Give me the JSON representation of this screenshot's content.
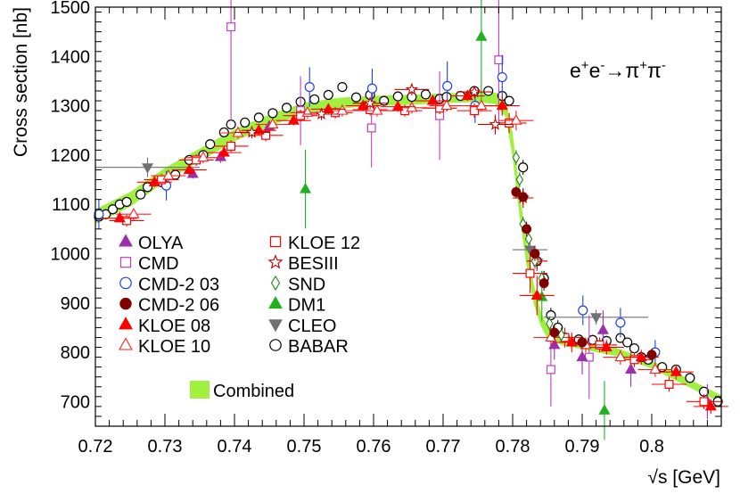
{
  "chart_data": {
    "type": "scatter",
    "title": "e+e-→π+π-",
    "title_parts": {
      "base": "e",
      "sup1": "+",
      "base2": "e",
      "sup2": "-",
      "arrow": "→π",
      "sup3": "+",
      "base3": "π",
      "sup4": "-"
    },
    "xlabel": "√s   [GeV]",
    "ylabel": "Cross section   [nb]",
    "xlim": [
      0.72,
      0.81
    ],
    "ylim": [
      650,
      1500
    ],
    "x_ticks": [
      0.72,
      0.73,
      0.74,
      0.75,
      0.76,
      0.77,
      0.78,
      0.79,
      0.8
    ],
    "x_tick_labels": [
      "0.72",
      "0.73",
      "0.74",
      "0.75",
      "0.76",
      "0.77",
      "0.78",
      "0.79",
      "0.8"
    ],
    "y_ticks": [
      700,
      800,
      900,
      1000,
      1100,
      1200,
      1300,
      1400,
      1500
    ],
    "y_tick_labels": [
      "700",
      "800",
      "900",
      "1000",
      "1100",
      "1200",
      "1300",
      "1400",
      "1500"
    ],
    "legend": [
      {
        "name": "OLYA",
        "marker": "triangle-up-filled",
        "color": "#9b2fae"
      },
      {
        "name": "CMD",
        "marker": "square-open",
        "color": "#c040c0"
      },
      {
        "name": "CMD-2 03",
        "marker": "circle-open",
        "color": "#2040e0"
      },
      {
        "name": "CMD-2 06",
        "marker": "circle-filled",
        "color": "#800000"
      },
      {
        "name": "KLOE 08",
        "marker": "triangle-up-filled",
        "color": "#ff0000"
      },
      {
        "name": "KLOE 10",
        "marker": "triangle-up-open",
        "color": "#ff2020"
      },
      {
        "name": "KLOE 12",
        "marker": "square-open",
        "color": "#ff0000"
      },
      {
        "name": "BESIII",
        "marker": "star-open",
        "color": "#c00000"
      },
      {
        "name": "SND",
        "marker": "diamond-open",
        "color": "#208020"
      },
      {
        "name": "DM1",
        "marker": "triangle-up-filled",
        "color": "#20b020"
      },
      {
        "name": "CLEO",
        "marker": "triangle-down-filled",
        "color": "#707070"
      },
      {
        "name": "BABAR",
        "marker": "circle-open",
        "color": "#000000"
      }
    ],
    "combined_label": "Combined",
    "combined_color": "#a0f040",
    "combined_band": {
      "x": [
        0.72,
        0.725,
        0.73,
        0.735,
        0.74,
        0.745,
        0.75,
        0.755,
        0.76,
        0.765,
        0.77,
        0.775,
        0.7775,
        0.779,
        0.78,
        0.781,
        0.782,
        0.783,
        0.784,
        0.785,
        0.787,
        0.79,
        0.795,
        0.8,
        0.805,
        0.81
      ],
      "y": [
        1075,
        1110,
        1160,
        1200,
        1240,
        1270,
        1295,
        1305,
        1310,
        1312,
        1315,
        1318,
        1315,
        1295,
        1220,
        1100,
        1000,
        920,
        870,
        840,
        825,
        815,
        800,
        775,
        740,
        705
      ],
      "half_width": [
        15,
        15,
        14,
        13,
        12,
        12,
        11,
        11,
        10,
        10,
        10,
        10,
        12,
        18,
        25,
        25,
        25,
        20,
        15,
        12,
        10,
        9,
        8,
        8,
        8,
        8
      ]
    },
    "series": [
      {
        "name": "OLYA",
        "points": [
          [
            0.734,
            1162,
            0,
            10
          ],
          [
            0.738,
            1196,
            0,
            12
          ],
          [
            0.745,
            1258,
            0,
            12
          ],
          [
            0.786,
            815,
            0,
            30
          ],
          [
            0.79,
            790,
            0,
            35
          ],
          [
            0.793,
            845,
            0,
            40
          ],
          [
            0.797,
            765,
            0,
            35
          ],
          [
            0.808,
            700,
            0,
            35
          ]
        ]
      },
      {
        "name": "CMD",
        "points": [
          [
            0.7395,
            1460,
            0,
            190
          ],
          [
            0.7495,
            1290,
            0,
            70
          ],
          [
            0.7597,
            1255,
            0,
            80
          ],
          [
            0.7695,
            1280,
            0,
            90
          ],
          [
            0.778,
            1393,
            0,
            130
          ],
          [
            0.7855,
            765,
            0,
            75
          ],
          [
            0.791,
            790,
            0,
            85
          ]
        ]
      },
      {
        "name": "CMD-2 03",
        "points": [
          [
            0.7205,
            1080,
            0,
            30
          ],
          [
            0.7302,
            1138,
            0,
            30
          ],
          [
            0.7508,
            1338,
            0,
            40
          ],
          [
            0.7598,
            1335,
            0,
            40
          ],
          [
            0.7706,
            1340,
            0,
            50
          ],
          [
            0.7746,
            1300,
            0,
            35
          ],
          [
            0.7785,
            1358,
            0,
            45
          ],
          [
            0.7901,
            885,
            0,
            30
          ],
          [
            0.7955,
            860,
            0,
            30
          ],
          [
            0.8005,
            800,
            0,
            25
          ]
        ]
      },
      {
        "name": "CMD-2 06",
        "points": [
          [
            0.7805,
            1125,
            0,
            12
          ],
          [
            0.7815,
            1115,
            0,
            15
          ],
          [
            0.782,
            1050,
            0,
            15
          ],
          [
            0.7832,
            1000,
            0,
            15
          ],
          [
            0.7845,
            940,
            0,
            15
          ],
          [
            0.786,
            840,
            0,
            15
          ],
          [
            0.79,
            820,
            0,
            12
          ],
          [
            0.8,
            795,
            0,
            12
          ]
        ]
      },
      {
        "name": "KLOE 08",
        "points": [
          [
            0.7235,
            1072,
            0.0025,
            8
          ],
          [
            0.7285,
            1145,
            0.0025,
            10
          ],
          [
            0.7335,
            1170,
            0.0025,
            10
          ],
          [
            0.7385,
            1205,
            0.0025,
            10
          ],
          [
            0.7435,
            1250,
            0.0025,
            10
          ],
          [
            0.7485,
            1270,
            0.0025,
            10
          ],
          [
            0.7535,
            1293,
            0.0025,
            10
          ],
          [
            0.7585,
            1300,
            0.0025,
            10
          ],
          [
            0.7635,
            1298,
            0.0025,
            10
          ],
          [
            0.7685,
            1310,
            0.0025,
            10
          ],
          [
            0.7735,
            1320,
            0.0025,
            10
          ],
          [
            0.7785,
            1300,
            0.0025,
            20
          ],
          [
            0.7835,
            915,
            0.0025,
            40
          ],
          [
            0.7885,
            820,
            0.0025,
            20
          ],
          [
            0.7935,
            810,
            0.0025,
            15
          ],
          [
            0.7985,
            790,
            0.0025,
            15
          ],
          [
            0.8035,
            760,
            0.0025,
            15
          ],
          [
            0.8085,
            690,
            0.0025,
            15
          ]
        ]
      },
      {
        "name": "KLOE 10",
        "points": [
          [
            0.7255,
            1080,
            0.0025,
            12
          ],
          [
            0.7305,
            1158,
            0.0025,
            12
          ],
          [
            0.7355,
            1195,
            0.0025,
            12
          ],
          [
            0.7405,
            1245,
            0.0025,
            12
          ],
          [
            0.7455,
            1262,
            0.0025,
            12
          ],
          [
            0.7505,
            1286,
            0.0025,
            12
          ],
          [
            0.7555,
            1290,
            0.0025,
            12
          ],
          [
            0.7605,
            1290,
            0.0025,
            12
          ],
          [
            0.7655,
            1296,
            0.0025,
            12
          ],
          [
            0.7705,
            1300,
            0.0025,
            12
          ],
          [
            0.7755,
            1300,
            0.0025,
            12
          ],
          [
            0.7805,
            1270,
            0.0025,
            20
          ],
          [
            0.7855,
            830,
            0.0025,
            20
          ],
          [
            0.7905,
            815,
            0.0025,
            15
          ],
          [
            0.7955,
            790,
            0.0025,
            15
          ],
          [
            0.8005,
            765,
            0.0025,
            15
          ]
        ]
      },
      {
        "name": "KLOE 12",
        "points": [
          [
            0.7245,
            1067,
            0.0025,
            12
          ],
          [
            0.7295,
            1150,
            0.0025,
            12
          ],
          [
            0.7345,
            1190,
            0.0025,
            12
          ],
          [
            0.7395,
            1218,
            0.0025,
            12
          ],
          [
            0.7445,
            1240,
            0.0025,
            12
          ],
          [
            0.7495,
            1280,
            0.0025,
            12
          ],
          [
            0.7545,
            1286,
            0.0025,
            12
          ],
          [
            0.7595,
            1292,
            0.0025,
            12
          ],
          [
            0.7645,
            1290,
            0.0025,
            12
          ],
          [
            0.7695,
            1295,
            0.0025,
            12
          ],
          [
            0.7745,
            1290,
            0.0025,
            15
          ],
          [
            0.7795,
            1265,
            0.0025,
            20
          ],
          [
            0.7825,
            960,
            0.0025,
            40
          ],
          [
            0.7875,
            830,
            0.0025,
            20
          ],
          [
            0.7925,
            815,
            0.0025,
            15
          ],
          [
            0.7975,
            785,
            0.0025,
            15
          ],
          [
            0.8025,
            735,
            0.0025,
            15
          ],
          [
            0.8075,
            700,
            0.0025,
            15
          ]
        ]
      },
      {
        "name": "BESIII",
        "points": [
          [
            0.7425,
            1246,
            0.0025,
            12
          ],
          [
            0.7525,
            1283,
            0.0025,
            12
          ],
          [
            0.7595,
            1305,
            0.0025,
            12
          ],
          [
            0.7655,
            1333,
            0.0025,
            12
          ],
          [
            0.7745,
            1328,
            0.0025,
            12
          ],
          [
            0.7775,
            1262,
            0.0025,
            20
          ],
          [
            0.7815,
            1113,
            0.0015,
            20
          ],
          [
            0.7835,
            985,
            0.0015,
            20
          ]
        ]
      },
      {
        "name": "SND",
        "points": [
          [
            0.7805,
            1195,
            0,
            15
          ],
          [
            0.781,
            1150,
            0,
            15
          ],
          [
            0.7815,
            1060,
            0,
            15
          ],
          [
            0.7823,
            1030,
            0,
            15
          ],
          [
            0.7832,
            985,
            0,
            15
          ],
          [
            0.7842,
            950,
            0,
            15
          ],
          [
            0.7853,
            858,
            0,
            15
          ],
          [
            0.787,
            835,
            0,
            15
          ]
        ]
      },
      {
        "name": "DM1",
        "points": [
          [
            0.7502,
            1131,
            0,
            80
          ],
          [
            0.7755,
            1440,
            0,
            130
          ],
          [
            0.7842,
            912,
            0,
            50
          ],
          [
            0.7932,
            682,
            0,
            60
          ]
        ]
      },
      {
        "name": "CLEO",
        "points": [
          [
            0.7275,
            1175,
            0.0075,
            20
          ],
          [
            0.7825,
            1008,
            0.0025,
            30
          ],
          [
            0.792,
            871,
            0.0075,
            15
          ]
        ]
      },
      {
        "name": "BABAR",
        "points": [
          [
            0.7205,
            1075,
            0.0005,
            10
          ],
          [
            0.7215,
            1080,
            0.0005,
            10
          ],
          [
            0.7225,
            1090,
            0.0005,
            10
          ],
          [
            0.7235,
            1100,
            0.0005,
            10
          ],
          [
            0.7245,
            1105,
            0.0005,
            10
          ],
          [
            0.7265,
            1120,
            0.0005,
            10
          ],
          [
            0.7275,
            1135,
            0.0005,
            10
          ],
          [
            0.7295,
            1145,
            0.0005,
            10
          ],
          [
            0.7315,
            1160,
            0.0005,
            10
          ],
          [
            0.7335,
            1190,
            0.0005,
            10
          ],
          [
            0.7355,
            1200,
            0.0005,
            10
          ],
          [
            0.7365,
            1222,
            0.0005,
            10
          ],
          [
            0.7385,
            1246,
            0.0005,
            10
          ],
          [
            0.7395,
            1262,
            0.0005,
            10
          ],
          [
            0.7415,
            1266,
            0.0005,
            10
          ],
          [
            0.7435,
            1276,
            0.0005,
            10
          ],
          [
            0.7455,
            1285,
            0.0005,
            10
          ],
          [
            0.7475,
            1296,
            0.0005,
            10
          ],
          [
            0.7495,
            1308,
            0.0005,
            10
          ],
          [
            0.7515,
            1313,
            0.0005,
            10
          ],
          [
            0.7535,
            1322,
            0.0005,
            10
          ],
          [
            0.7555,
            1338,
            0.0005,
            10
          ],
          [
            0.7575,
            1317,
            0.0005,
            10
          ],
          [
            0.7595,
            1322,
            0.0005,
            10
          ],
          [
            0.7615,
            1310,
            0.0005,
            10
          ],
          [
            0.7635,
            1319,
            0.0005,
            10
          ],
          [
            0.7655,
            1318,
            0.0005,
            10
          ],
          [
            0.7675,
            1323,
            0.0005,
            10
          ],
          [
            0.7695,
            1314,
            0.0005,
            10
          ],
          [
            0.7705,
            1318,
            0.0005,
            10
          ],
          [
            0.7725,
            1320,
            0.0005,
            10
          ],
          [
            0.7745,
            1330,
            0.0005,
            10
          ],
          [
            0.7765,
            1330,
            0.0005,
            10
          ],
          [
            0.7785,
            1320,
            0.0005,
            10
          ],
          [
            0.7795,
            1310,
            0.0005,
            10
          ],
          [
            0.7815,
            1175,
            0.0005,
            15
          ],
          [
            0.7835,
            985,
            0.0005,
            15
          ],
          [
            0.7845,
            950,
            0.0005,
            15
          ],
          [
            0.7855,
            875,
            0.0005,
            15
          ],
          [
            0.7865,
            850,
            0.0005,
            15
          ],
          [
            0.7875,
            830,
            0.0005,
            10
          ],
          [
            0.7895,
            826,
            0.0005,
            10
          ],
          [
            0.7915,
            825,
            0.0005,
            10
          ],
          [
            0.7935,
            823,
            0.0005,
            10
          ],
          [
            0.7955,
            829,
            0.0005,
            10
          ],
          [
            0.7965,
            820,
            0.0005,
            10
          ],
          [
            0.7975,
            808,
            0.0005,
            10
          ],
          [
            0.7985,
            790,
            0.0005,
            10
          ],
          [
            0.7995,
            785,
            0.0005,
            10
          ],
          [
            0.8015,
            770,
            0.0005,
            10
          ],
          [
            0.8035,
            765,
            0.0005,
            10
          ],
          [
            0.8055,
            748,
            0.0005,
            10
          ],
          [
            0.8075,
            720,
            0.0005,
            10
          ],
          [
            0.8095,
            700,
            0.0005,
            10
          ]
        ]
      }
    ]
  }
}
